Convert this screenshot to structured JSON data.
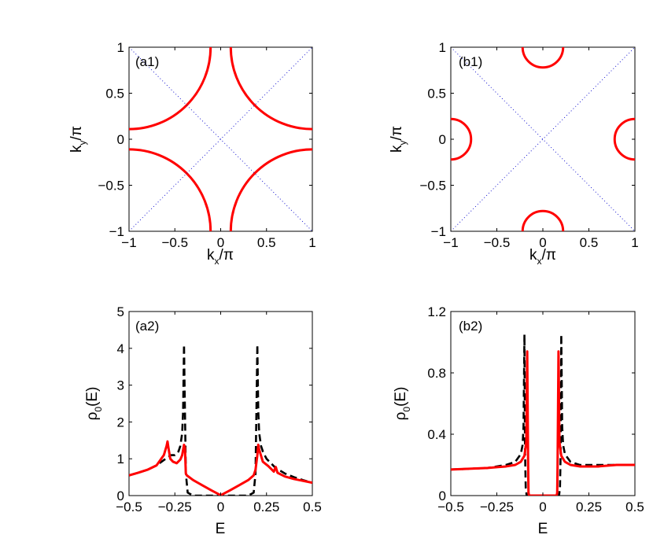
{
  "chart_data": [
    {
      "id": "a1",
      "type": "line",
      "title": "",
      "panel_label": "(a1)",
      "xlabel": {
        "main": "k",
        "sub": "x",
        "tail": "/π"
      },
      "ylabel": {
        "main": "k",
        "sub": "y",
        "tail": "/π"
      },
      "xlim": [
        -1,
        1
      ],
      "ylim": [
        -1,
        1
      ],
      "xticks": [
        -1,
        -0.5,
        0,
        0.5,
        1
      ],
      "xtick_labels": [
        "−1",
        "−0.5",
        "0",
        "0.5",
        "1"
      ],
      "yticks": [
        -1,
        -0.5,
        0,
        0.5,
        1
      ],
      "ytick_labels": [
        "−1",
        "−0.5",
        "0",
        "0.5",
        "1"
      ],
      "series": [
        {
          "name": "Fermi surface arcs (corners)",
          "color": "#ff0000",
          "style": "solid",
          "kind": "arcs",
          "centers": [
            [
              1,
              1
            ],
            [
              -1,
              1
            ],
            [
              1,
              -1
            ],
            [
              -1,
              -1
            ]
          ],
          "radius": 0.89
        },
        {
          "name": "magnetic zone boundary",
          "color": "#0000cc",
          "style": "dotted",
          "kind": "diagonals"
        }
      ]
    },
    {
      "id": "b1",
      "type": "line",
      "title": "",
      "panel_label": "(b1)",
      "xlabel": {
        "main": "k",
        "sub": "x",
        "tail": "/π"
      },
      "ylabel": {
        "main": "k",
        "sub": "y",
        "tail": "/π"
      },
      "xlim": [
        -1,
        1
      ],
      "ylim": [
        -1,
        1
      ],
      "xticks": [
        -1,
        -0.5,
        0,
        0.5,
        1
      ],
      "xtick_labels": [
        "−1",
        "−0.5",
        "0",
        "0.5",
        "1"
      ],
      "yticks": [
        -1,
        -0.5,
        0,
        0.5,
        1
      ],
      "ytick_labels": [
        "−1",
        "−0.5",
        "0",
        "0.5",
        "1"
      ],
      "series": [
        {
          "name": "Fermi pockets (edge centers)",
          "color": "#ff0000",
          "style": "solid",
          "kind": "arcs",
          "centers": [
            [
              -1,
              0
            ],
            [
              1,
              0
            ],
            [
              0,
              1
            ],
            [
              0,
              -1
            ]
          ],
          "radius": 0.22
        },
        {
          "name": "magnetic zone boundary",
          "color": "#0000cc",
          "style": "dotted",
          "kind": "diagonals"
        }
      ]
    },
    {
      "id": "a2",
      "type": "line",
      "title": "",
      "panel_label": "(a2)",
      "xlabel": {
        "main": "E",
        "sub": "",
        "tail": ""
      },
      "ylabel": {
        "main": "ρ",
        "sub": "0",
        "tail": "(E)"
      },
      "xlim": [
        -0.5,
        0.5
      ],
      "ylim": [
        0,
        5
      ],
      "xticks": [
        -0.5,
        -0.25,
        0,
        0.25,
        0.5
      ],
      "xtick_labels": [
        "−0.5",
        "−0.25",
        "0",
        "0.25",
        "0.5"
      ],
      "yticks": [
        0,
        1,
        2,
        3,
        4,
        5
      ],
      "ytick_labels": [
        "0",
        "1",
        "2",
        "3",
        "4",
        "5"
      ],
      "series": [
        {
          "name": "dashed (black)",
          "color": "#000000",
          "style": "dashed",
          "x": [
            -0.5,
            -0.45,
            -0.4,
            -0.35,
            -0.3,
            -0.27,
            -0.25,
            -0.23,
            -0.22,
            -0.21,
            -0.205,
            -0.2,
            -0.197,
            -0.19,
            -0.18,
            -0.15,
            0,
            0.15,
            0.18,
            0.19,
            0.197,
            0.2,
            0.205,
            0.21,
            0.22,
            0.23,
            0.25,
            0.3,
            0.35,
            0.4,
            0.45,
            0.5
          ],
          "y": [
            0.55,
            0.62,
            0.7,
            0.82,
            1.0,
            1.1,
            1.1,
            1.2,
            1.35,
            1.7,
            2.3,
            4.1,
            3.0,
            0.6,
            0.08,
            0,
            0,
            0,
            0.08,
            0.6,
            3.0,
            4.1,
            2.3,
            1.7,
            1.35,
            1.2,
            1.0,
            0.75,
            0.6,
            0.5,
            0.42,
            0.35
          ]
        },
        {
          "name": "solid (red)",
          "color": "#ff0000",
          "style": "solid",
          "x": [
            -0.5,
            -0.45,
            -0.4,
            -0.35,
            -0.31,
            -0.295,
            -0.29,
            -0.285,
            -0.275,
            -0.26,
            -0.24,
            -0.22,
            -0.21,
            -0.2,
            -0.195,
            -0.19,
            -0.185,
            -0.15,
            -0.1,
            -0.05,
            0,
            0.05,
            0.1,
            0.15,
            0.18,
            0.19,
            0.2,
            0.205,
            0.21,
            0.23,
            0.26,
            0.29,
            0.3,
            0.31,
            0.35,
            0.4,
            0.45,
            0.5
          ],
          "y": [
            0.55,
            0.62,
            0.7,
            0.82,
            1.1,
            1.35,
            1.47,
            1.3,
            1.0,
            0.92,
            0.88,
            0.98,
            1.1,
            1.38,
            1.3,
            0.6,
            0.55,
            0.42,
            0.28,
            0.14,
            0.01,
            0.14,
            0.28,
            0.42,
            0.55,
            0.7,
            1.1,
            1.38,
            1.25,
            0.92,
            0.8,
            0.65,
            0.78,
            0.62,
            0.52,
            0.45,
            0.4,
            0.35
          ]
        }
      ]
    },
    {
      "id": "b2",
      "type": "line",
      "title": "",
      "panel_label": "(b2)",
      "xlabel": {
        "main": "E",
        "sub": "",
        "tail": ""
      },
      "ylabel": {
        "main": "ρ",
        "sub": "0",
        "tail": "(E)"
      },
      "xlim": [
        -0.5,
        0.5
      ],
      "ylim": [
        0,
        1.2
      ],
      "xticks": [
        -0.5,
        -0.25,
        0,
        0.25,
        0.5
      ],
      "xtick_labels": [
        "−0.5",
        "−0.25",
        "0",
        "0.25",
        "0.5"
      ],
      "yticks": [
        0,
        0.4,
        0.8,
        1.2
      ],
      "ytick_labels": [
        "0",
        "0.4",
        "0.8",
        "1.2"
      ],
      "series": [
        {
          "name": "dashed (black)",
          "color": "#000000",
          "style": "dashed",
          "x": [
            -0.5,
            -0.4,
            -0.3,
            -0.2,
            -0.15,
            -0.12,
            -0.11,
            -0.105,
            -0.1,
            -0.097,
            -0.093,
            -0.088,
            0,
            0.088,
            0.093,
            0.097,
            0.1,
            0.105,
            0.11,
            0.12,
            0.15,
            0.2,
            0.3,
            0.4,
            0.5
          ],
          "y": [
            0.17,
            0.175,
            0.18,
            0.2,
            0.22,
            0.27,
            0.33,
            0.45,
            1.05,
            0.3,
            0.05,
            0,
            0,
            0,
            0.05,
            0.3,
            1.05,
            0.45,
            0.33,
            0.27,
            0.22,
            0.2,
            0.2,
            0.2,
            0.2
          ]
        },
        {
          "name": "solid (red)",
          "color": "#ff0000",
          "style": "solid",
          "x": [
            -0.5,
            -0.4,
            -0.3,
            -0.2,
            -0.15,
            -0.12,
            -0.1,
            -0.09,
            -0.085,
            -0.08,
            -0.078,
            -0.075,
            0,
            0.075,
            0.078,
            0.08,
            0.085,
            0.09,
            0.1,
            0.12,
            0.15,
            0.2,
            0.3,
            0.4,
            0.5
          ],
          "y": [
            0.17,
            0.175,
            0.18,
            0.19,
            0.2,
            0.22,
            0.26,
            0.35,
            0.94,
            0.2,
            0.02,
            0,
            0,
            0,
            0.02,
            0.2,
            0.94,
            0.35,
            0.26,
            0.22,
            0.2,
            0.19,
            0.19,
            0.2,
            0.2
          ]
        }
      ]
    }
  ]
}
